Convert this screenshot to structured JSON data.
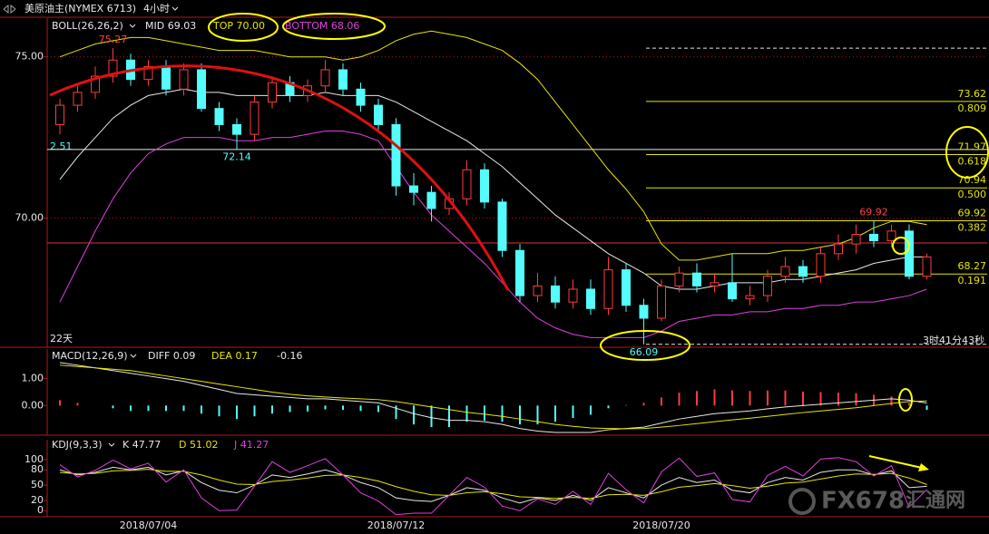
{
  "header": {
    "symbol": "美原油主(NYMEX 6713)",
    "period": "4小时"
  },
  "edge_texts": {
    "left_level": "2.51",
    "days": "22天",
    "countdown": "3时41分43秒"
  },
  "watermark": {
    "brand": "FX678",
    "site": "汇通网"
  },
  "chart_data": [
    {
      "type": "candlestick",
      "indicator": "BOLL(26,26,2)",
      "mid_label": "MID 69.03",
      "top_label": "TOP 70.00",
      "bottom_label": "BOTTOM 68.06",
      "categories": [
        null,
        null,
        null,
        null,
        null,
        "2018/07/04",
        null,
        null,
        null,
        null,
        null,
        null,
        null,
        null,
        null,
        null,
        null,
        null,
        null,
        "2018/07/12",
        null,
        null,
        null,
        null,
        null,
        null,
        null,
        null,
        null,
        null,
        null,
        null,
        null,
        null,
        "2018/07/20",
        null,
        null,
        null,
        null,
        null,
        null,
        null,
        null,
        null,
        null,
        null,
        null,
        null,
        null,
        null
      ],
      "open": [
        72.9,
        73.5,
        73.9,
        74.4,
        74.9,
        74.3,
        74.7,
        74.0,
        74.6,
        73.4,
        72.9,
        72.6,
        73.6,
        74.2,
        73.8,
        74.1,
        74.6,
        74.0,
        73.5,
        72.9,
        71.0,
        70.8,
        70.3,
        70.6,
        71.5,
        70.5,
        69.0,
        67.6,
        67.9,
        67.4,
        67.8,
        67.2,
        68.4,
        67.3,
        66.9,
        67.9,
        68.3,
        67.9,
        68.0,
        67.5,
        67.6,
        68.2,
        68.5,
        68.2,
        68.9,
        69.2,
        69.5,
        69.3,
        69.6,
        68.2
      ],
      "high": [
        73.7,
        74.1,
        74.7,
        75.27,
        75.1,
        74.9,
        74.9,
        74.8,
        74.8,
        73.6,
        73.1,
        73.8,
        74.4,
        74.4,
        74.3,
        74.9,
        74.8,
        74.2,
        73.7,
        73.1,
        71.4,
        71.0,
        70.8,
        71.8,
        71.7,
        70.6,
        69.2,
        68.3,
        68.2,
        68.1,
        68.1,
        68.8,
        68.6,
        67.5,
        68.1,
        68.5,
        68.6,
        68.3,
        68.9,
        67.9,
        68.4,
        68.8,
        68.7,
        69.1,
        69.5,
        69.8,
        69.92,
        69.8,
        69.8,
        68.9
      ],
      "low": [
        72.6,
        73.3,
        73.7,
        74.2,
        74.1,
        74.1,
        73.8,
        73.8,
        73.3,
        72.7,
        72.14,
        72.4,
        73.4,
        73.6,
        73.6,
        73.9,
        73.8,
        73.3,
        72.7,
        70.7,
        70.4,
        69.9,
        70.1,
        70.4,
        70.3,
        68.8,
        67.4,
        67.4,
        67.2,
        67.2,
        67.0,
        67.0,
        67.1,
        66.09,
        66.8,
        67.7,
        67.7,
        67.7,
        67.4,
        67.3,
        67.4,
        68.0,
        68.0,
        68.0,
        68.7,
        68.9,
        69.1,
        69.1,
        68.1,
        68.1
      ],
      "close": [
        73.5,
        73.9,
        74.4,
        74.9,
        74.3,
        74.7,
        74.0,
        74.6,
        73.4,
        72.9,
        72.6,
        73.6,
        74.2,
        73.8,
        74.1,
        74.6,
        74.0,
        73.5,
        72.9,
        71.0,
        70.8,
        70.3,
        70.6,
        71.5,
        70.5,
        69.0,
        67.6,
        67.9,
        67.4,
        67.8,
        67.2,
        68.4,
        67.3,
        66.9,
        67.9,
        68.3,
        67.9,
        68.0,
        67.5,
        67.6,
        68.2,
        68.5,
        68.2,
        68.9,
        69.2,
        69.5,
        69.3,
        69.6,
        68.2,
        68.8
      ],
      "up_color": "#ff3c3c",
      "down_color": "#54fcfc",
      "series": [
        {
          "color": "#e8e8e8",
          "values": [
            71.2,
            71.9,
            72.5,
            73.1,
            73.5,
            73.8,
            73.9,
            74.0,
            73.9,
            73.9,
            73.8,
            73.8,
            73.8,
            73.8,
            73.8,
            73.9,
            73.8,
            73.8,
            73.8,
            73.6,
            73.3,
            73.0,
            72.7,
            72.4,
            72.0,
            71.6,
            71.1,
            70.6,
            70.1,
            69.7,
            69.3,
            68.9,
            68.6,
            68.3,
            67.9,
            67.8,
            67.8,
            67.9,
            68.0,
            68.0,
            68.0,
            68.1,
            68.1,
            68.2,
            68.3,
            68.4,
            68.6,
            68.7,
            68.8,
            68.8
          ]
        },
        {
          "color": "#e6e600",
          "values": [
            75.0,
            75.2,
            75.4,
            75.5,
            75.6,
            75.6,
            75.5,
            75.4,
            75.3,
            75.2,
            75.2,
            75.2,
            75.1,
            75.0,
            75.0,
            75.0,
            74.9,
            75.0,
            75.2,
            75.5,
            75.7,
            75.8,
            75.7,
            75.6,
            75.4,
            75.2,
            74.8,
            74.3,
            73.6,
            72.9,
            72.2,
            71.5,
            70.9,
            70.2,
            69.2,
            68.7,
            68.7,
            68.8,
            68.9,
            68.9,
            68.9,
            69.0,
            69.0,
            69.1,
            69.2,
            69.4,
            69.7,
            69.9,
            69.9,
            69.8
          ]
        },
        {
          "color": "#e040e0",
          "values": [
            67.4,
            68.5,
            69.6,
            70.6,
            71.4,
            72.0,
            72.3,
            72.5,
            72.5,
            72.5,
            72.4,
            72.4,
            72.5,
            72.5,
            72.6,
            72.7,
            72.7,
            72.6,
            72.4,
            71.6,
            70.8,
            70.1,
            69.6,
            69.1,
            68.6,
            68.0,
            67.4,
            66.9,
            66.6,
            66.4,
            66.3,
            66.3,
            66.3,
            66.3,
            66.5,
            66.8,
            66.9,
            67.0,
            67.0,
            67.1,
            67.1,
            67.2,
            67.2,
            67.3,
            67.3,
            67.4,
            67.4,
            67.5,
            67.6,
            67.8
          ]
        }
      ],
      "extremes": [
        {
          "index": 3,
          "value": 75.27,
          "color": "#ff4040"
        },
        {
          "index": 10,
          "value": 72.14,
          "color": "#54fcfc"
        },
        {
          "index": 46,
          "value": 69.92,
          "color": "#ff4040"
        },
        {
          "index": 33,
          "value": 66.09,
          "color": "#54fcfc"
        }
      ],
      "fib": [
        {
          "price": 73.62,
          "ratio": 0.809
        },
        {
          "price": 71.97,
          "ratio": 0.618
        },
        {
          "price": 70.94,
          "ratio": {
            "value": 0.5,
            "label": "0.500"
          }
        },
        {
          "price": 69.92,
          "ratio": 0.382
        },
        {
          "price": 68.27,
          "ratio": 0.191
        }
      ],
      "dashed_levels": [
        75.27,
        66.09
      ],
      "hlines": [
        {
          "value": 72.13,
          "color": "#e8e8e8"
        },
        {
          "value": 69.23,
          "color": "#e03030"
        }
      ],
      "ylim": [
        66.0,
        76.2
      ],
      "yticks": [
        {
          "value": 75,
          "label": "75.00"
        },
        {
          "value": 70,
          "label": "70.00"
        }
      ],
      "grid": true
    },
    {
      "type": "macd",
      "indicator": "MACD(12,26,9)",
      "diff_label": "DIFF 0.09",
      "dea_label": "DEA 0.17",
      "macd_label": "-0.16",
      "series": [
        {
          "color": "#e8e8e8",
          "values": [
            1.6,
            1.5,
            1.4,
            1.3,
            1.2,
            1.1,
            1.0,
            0.9,
            0.75,
            0.6,
            0.45,
            0.4,
            0.35,
            0.3,
            0.25,
            0.25,
            0.2,
            0.15,
            0.1,
            -0.1,
            -0.3,
            -0.45,
            -0.55,
            -0.55,
            -0.6,
            -0.7,
            -0.85,
            -0.95,
            -1.0,
            -1.0,
            -1.0,
            -0.9,
            -0.85,
            -0.8,
            -0.65,
            -0.5,
            -0.4,
            -0.3,
            -0.25,
            -0.2,
            -0.12,
            -0.05,
            0.0,
            0.05,
            0.1,
            0.15,
            0.2,
            0.25,
            0.2,
            0.09
          ]
        },
        {
          "color": "#e6e600",
          "values": [
            1.5,
            1.45,
            1.4,
            1.35,
            1.3,
            1.2,
            1.1,
            1.0,
            0.9,
            0.8,
            0.7,
            0.6,
            0.5,
            0.42,
            0.36,
            0.32,
            0.28,
            0.25,
            0.22,
            0.15,
            0.05,
            -0.05,
            -0.15,
            -0.25,
            -0.32,
            -0.4,
            -0.5,
            -0.6,
            -0.7,
            -0.77,
            -0.83,
            -0.85,
            -0.86,
            -0.85,
            -0.8,
            -0.74,
            -0.67,
            -0.6,
            -0.53,
            -0.47,
            -0.4,
            -0.33,
            -0.26,
            -0.2,
            -0.14,
            -0.08,
            0.0,
            0.08,
            0.15,
            0.17
          ]
        }
      ],
      "histogram": [
        0.2,
        0.1,
        0,
        -0.1,
        -0.2,
        -0.2,
        -0.2,
        -0.2,
        -0.3,
        -0.4,
        -0.5,
        -0.4,
        -0.3,
        -0.24,
        -0.22,
        -0.14,
        -0.16,
        -0.2,
        -0.24,
        -0.5,
        -0.7,
        -0.8,
        -0.8,
        -0.6,
        -0.56,
        -0.6,
        -0.7,
        -0.7,
        -0.6,
        -0.46,
        -0.34,
        -0.1,
        0.02,
        0.1,
        0.3,
        0.48,
        0.54,
        0.6,
        0.56,
        0.54,
        0.56,
        0.56,
        0.52,
        0.5,
        0.48,
        0.46,
        0.4,
        0.34,
        0.1,
        -0.16
      ],
      "up_color": "#ff3c3c",
      "down_color": "#54fcfc",
      "ylim": [
        -1.1,
        2.1
      ],
      "yticks": [
        {
          "value": 1,
          "label": "1.00"
        },
        {
          "value": 0,
          "label": "0.00"
        }
      ]
    },
    {
      "type": "kdj",
      "indicator": "KDJ(9,3,3)",
      "k_label": "K 47.77",
      "d_label": "D 51.02",
      "j_label": "J 41.27",
      "series": [
        {
          "color": "#e8e8e8",
          "values": [
            80,
            70,
            75,
            85,
            80,
            85,
            70,
            78,
            55,
            40,
            35,
            50,
            70,
            65,
            72,
            80,
            70,
            55,
            45,
            25,
            20,
            18,
            30,
            45,
            40,
            25,
            15,
            25,
            20,
            30,
            20,
            45,
            35,
            25,
            50,
            65,
            55,
            60,
            40,
            35,
            55,
            65,
            60,
            75,
            80,
            80,
            70,
            78,
            45,
            47.77
          ]
        },
        {
          "color": "#e6e600",
          "values": [
            75,
            72,
            73,
            78,
            79,
            81,
            77,
            77,
            70,
            60,
            52,
            51,
            57,
            60,
            64,
            69,
            70,
            65,
            58,
            47,
            38,
            31,
            30,
            35,
            37,
            33,
            27,
            26,
            24,
            26,
            24,
            31,
            32,
            30,
            37,
            46,
            49,
            53,
            49,
            44,
            48,
            54,
            56,
            62,
            68,
            72,
            71,
            73,
            64,
            51.02
          ]
        },
        {
          "color": "#e040e0",
          "values": [
            90,
            66,
            79,
            99,
            82,
            93,
            56,
            80,
            25,
            0,
            1,
            48,
            96,
            75,
            88,
            102,
            70,
            35,
            19,
            -8,
            -5,
            -5,
            30,
            65,
            46,
            9,
            0,
            23,
            12,
            38,
            12,
            73,
            41,
            15,
            76,
            103,
            67,
            74,
            22,
            17,
            69,
            87,
            68,
            101,
            104,
            96,
            68,
            88,
            7,
            41.27
          ]
        }
      ],
      "ylim": [
        -12,
        139
      ],
      "yticks": [
        100,
        80,
        50,
        20,
        0
      ]
    }
  ]
}
